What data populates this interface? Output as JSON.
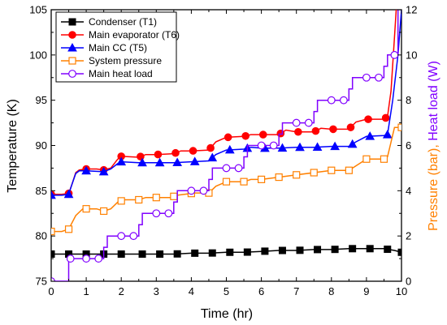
{
  "chart_data": {
    "type": "line",
    "xlabel": "Time (hr)",
    "ylabel_left": "Temperature (K)",
    "ylabel_right_parts": [
      {
        "text": "Pressure (bar),",
        "color": "#ff8000"
      },
      {
        "text": "Heat load (W)",
        "color": "#8000ff"
      }
    ],
    "xlim": [
      0,
      10
    ],
    "ylim_left": [
      75,
      105
    ],
    "ylim_right": [
      0,
      12
    ],
    "xticks": [
      "0",
      "1",
      "2",
      "3",
      "4",
      "5",
      "6",
      "7",
      "8",
      "9",
      "10"
    ],
    "yticks_left": [
      "75",
      "80",
      "85",
      "90",
      "95",
      "100",
      "105"
    ],
    "yticks_right": [
      "0",
      "2",
      "4",
      "6",
      "8",
      "10",
      "12"
    ],
    "legend_position": "top-left",
    "series": [
      {
        "name": "Condenser (T1)",
        "axis": "left",
        "color": "#000000",
        "marker": "square-filled",
        "points": [
          [
            0,
            78.0
          ],
          [
            0.3,
            78.0
          ],
          [
            0.5,
            78.0
          ],
          [
            0.7,
            78.0
          ],
          [
            1.0,
            78.0
          ],
          [
            1.3,
            78.0
          ],
          [
            1.5,
            78.0
          ],
          [
            1.7,
            78.0
          ],
          [
            2.0,
            78.0
          ],
          [
            2.5,
            78.0
          ],
          [
            3.0,
            78.0
          ],
          [
            3.5,
            78.0
          ],
          [
            4.0,
            78.1
          ],
          [
            4.5,
            78.1
          ],
          [
            5.0,
            78.2
          ],
          [
            5.5,
            78.2
          ],
          [
            6.0,
            78.3
          ],
          [
            6.5,
            78.4
          ],
          [
            7.0,
            78.4
          ],
          [
            7.5,
            78.5
          ],
          [
            8.0,
            78.5
          ],
          [
            8.5,
            78.6
          ],
          [
            9.0,
            78.6
          ],
          [
            9.5,
            78.6
          ],
          [
            9.8,
            78.4
          ],
          [
            10.0,
            78.2
          ]
        ],
        "markers_x": [
          0,
          0.5,
          1.0,
          1.5,
          2.0,
          2.6,
          3.1,
          3.6,
          4.1,
          4.6,
          5.1,
          5.6,
          6.1,
          6.6,
          7.1,
          7.6,
          8.1,
          8.6,
          9.1,
          9.6,
          10.0
        ]
      },
      {
        "name": "Main evaporator (T6)",
        "axis": "left",
        "color": "#ff0000",
        "marker": "circle-filled",
        "points": [
          [
            0,
            84.6
          ],
          [
            0.3,
            84.6
          ],
          [
            0.5,
            84.7
          ],
          [
            0.6,
            85.8
          ],
          [
            0.7,
            87.0
          ],
          [
            0.8,
            87.3
          ],
          [
            1.0,
            87.4
          ],
          [
            1.3,
            87.4
          ],
          [
            1.5,
            87.3
          ],
          [
            1.7,
            87.5
          ],
          [
            1.9,
            88.5
          ],
          [
            2.0,
            88.8
          ],
          [
            2.5,
            88.7
          ],
          [
            2.7,
            89.0
          ],
          [
            3.0,
            89.0
          ],
          [
            3.5,
            89.1
          ],
          [
            3.7,
            89.4
          ],
          [
            4.0,
            89.4
          ],
          [
            4.5,
            89.5
          ],
          [
            4.7,
            90.4
          ],
          [
            5.0,
            90.9
          ],
          [
            5.5,
            91.0
          ],
          [
            5.7,
            91.2
          ],
          [
            6.0,
            91.2
          ],
          [
            6.5,
            91.2
          ],
          [
            6.7,
            91.7
          ],
          [
            7.0,
            91.5
          ],
          [
            7.5,
            91.5
          ],
          [
            7.7,
            91.9
          ],
          [
            8.0,
            91.8
          ],
          [
            8.5,
            91.8
          ],
          [
            8.7,
            92.6
          ],
          [
            9.0,
            92.9
          ],
          [
            9.5,
            92.9
          ],
          [
            9.6,
            93.2
          ],
          [
            9.7,
            96.0
          ],
          [
            9.8,
            102.0
          ],
          [
            9.85,
            105.0
          ]
        ],
        "markers_x": [
          0,
          0.5,
          1.0,
          1.5,
          2.0,
          2.55,
          3.05,
          3.55,
          4.05,
          4.55,
          5.05,
          5.55,
          6.05,
          6.55,
          7.05,
          7.55,
          8.05,
          8.55,
          9.05,
          9.55
        ]
      },
      {
        "name": "Main CC (T5)",
        "axis": "left",
        "color": "#0000ff",
        "marker": "triangle-filled",
        "points": [
          [
            0,
            84.5
          ],
          [
            0.3,
            84.5
          ],
          [
            0.5,
            84.6
          ],
          [
            0.6,
            85.8
          ],
          [
            0.7,
            86.9
          ],
          [
            0.8,
            87.2
          ],
          [
            1.0,
            87.2
          ],
          [
            1.5,
            87.1
          ],
          [
            1.7,
            87.4
          ],
          [
            1.9,
            88.0
          ],
          [
            2.0,
            88.2
          ],
          [
            2.5,
            88.1
          ],
          [
            3.0,
            88.1
          ],
          [
            3.5,
            88.1
          ],
          [
            4.0,
            88.2
          ],
          [
            4.5,
            88.3
          ],
          [
            4.7,
            89.0
          ],
          [
            5.0,
            89.5
          ],
          [
            5.5,
            89.6
          ],
          [
            5.7,
            89.8
          ],
          [
            6.0,
            89.7
          ],
          [
            6.5,
            89.7
          ],
          [
            7.0,
            89.8
          ],
          [
            7.5,
            89.8
          ],
          [
            8.0,
            89.9
          ],
          [
            8.5,
            89.9
          ],
          [
            8.7,
            90.4
          ],
          [
            9.0,
            91.0
          ],
          [
            9.5,
            91.1
          ],
          [
            9.6,
            91.2
          ],
          [
            9.75,
            95.0
          ],
          [
            9.9,
            100.0
          ],
          [
            10.0,
            105.0
          ]
        ],
        "markers_x": [
          0,
          0.5,
          1.0,
          1.5,
          2.0,
          2.6,
          3.1,
          3.6,
          4.1,
          4.6,
          5.1,
          5.6,
          6.1,
          6.6,
          7.1,
          7.6,
          8.1,
          8.6,
          9.1,
          9.6
        ]
      },
      {
        "name": "System pressure",
        "axis": "right",
        "color": "#ff8000",
        "marker": "square-open",
        "points": [
          [
            0,
            2.2
          ],
          [
            0.3,
            2.2
          ],
          [
            0.5,
            2.3
          ],
          [
            0.7,
            2.9
          ],
          [
            0.9,
            3.2
          ],
          [
            1.3,
            3.2
          ],
          [
            1.5,
            3.1
          ],
          [
            1.7,
            3.2
          ],
          [
            1.9,
            3.5
          ],
          [
            2.1,
            3.6
          ],
          [
            2.5,
            3.6
          ],
          [
            2.7,
            3.7
          ],
          [
            3.1,
            3.7
          ],
          [
            3.4,
            3.7
          ],
          [
            3.6,
            3.8
          ],
          [
            4.1,
            3.9
          ],
          [
            4.5,
            3.9
          ],
          [
            4.7,
            4.2
          ],
          [
            5.0,
            4.4
          ],
          [
            5.5,
            4.4
          ],
          [
            5.7,
            4.5
          ],
          [
            6.0,
            4.5
          ],
          [
            6.5,
            4.6
          ],
          [
            7.0,
            4.7
          ],
          [
            7.5,
            4.8
          ],
          [
            8.0,
            4.9
          ],
          [
            8.5,
            4.9
          ],
          [
            8.7,
            5.1
          ],
          [
            9.0,
            5.4
          ],
          [
            9.5,
            5.4
          ],
          [
            9.6,
            5.5
          ],
          [
            9.8,
            6.8
          ],
          [
            10.0,
            6.8
          ]
        ],
        "markers_x": [
          0,
          0.5,
          1.0,
          1.5,
          2.0,
          2.5,
          3.0,
          3.5,
          4.0,
          4.5,
          5.0,
          5.5,
          6.0,
          6.5,
          7.0,
          7.5,
          8.0,
          8.5,
          9.0,
          9.5,
          10.0
        ]
      },
      {
        "name": "Main heat load",
        "axis": "right",
        "color": "#8000ff",
        "marker": "circle-open",
        "points": [
          [
            0,
            0
          ],
          [
            0.5,
            0
          ],
          [
            0.5,
            1.0
          ],
          [
            1.5,
            1.0
          ],
          [
            1.5,
            1.5
          ],
          [
            1.6,
            1.5
          ],
          [
            1.6,
            2.0
          ],
          [
            2.5,
            2.0
          ],
          [
            2.5,
            2.5
          ],
          [
            2.6,
            2.5
          ],
          [
            2.6,
            3.0
          ],
          [
            3.5,
            3.0
          ],
          [
            3.5,
            3.5
          ],
          [
            3.6,
            3.5
          ],
          [
            3.6,
            4.0
          ],
          [
            4.5,
            4.0
          ],
          [
            4.5,
            4.5
          ],
          [
            4.6,
            4.5
          ],
          [
            4.6,
            5.0
          ],
          [
            5.5,
            5.0
          ],
          [
            5.5,
            5.5
          ],
          [
            5.6,
            5.5
          ],
          [
            5.6,
            6.0
          ],
          [
            6.5,
            6.0
          ],
          [
            6.5,
            6.5
          ],
          [
            6.6,
            6.5
          ],
          [
            6.6,
            7.0
          ],
          [
            7.5,
            7.0
          ],
          [
            7.5,
            7.5
          ],
          [
            7.6,
            7.5
          ],
          [
            7.6,
            8.0
          ],
          [
            8.5,
            8.0
          ],
          [
            8.5,
            8.5
          ],
          [
            8.6,
            8.5
          ],
          [
            8.6,
            9.0
          ],
          [
            9.5,
            9.0
          ],
          [
            9.5,
            9.5
          ],
          [
            9.6,
            9.5
          ],
          [
            9.6,
            10.0
          ],
          [
            9.9,
            10.0
          ],
          [
            9.9,
            12.0
          ]
        ],
        "markers": [
          [
            0,
            0
          ],
          [
            0.55,
            1.0
          ],
          [
            1.0,
            1.0
          ],
          [
            1.35,
            1.0
          ],
          [
            2.0,
            2.0
          ],
          [
            2.35,
            2.0
          ],
          [
            3.0,
            3.0
          ],
          [
            3.35,
            3.0
          ],
          [
            4.0,
            4.0
          ],
          [
            4.35,
            4.0
          ],
          [
            5.0,
            5.0
          ],
          [
            5.35,
            5.0
          ],
          [
            6.0,
            6.0
          ],
          [
            6.35,
            6.0
          ],
          [
            7.0,
            7.0
          ],
          [
            7.35,
            7.0
          ],
          [
            8.0,
            8.0
          ],
          [
            8.35,
            8.0
          ],
          [
            9.0,
            9.0
          ],
          [
            9.35,
            9.0
          ],
          [
            9.8,
            10.0
          ]
        ]
      }
    ]
  }
}
